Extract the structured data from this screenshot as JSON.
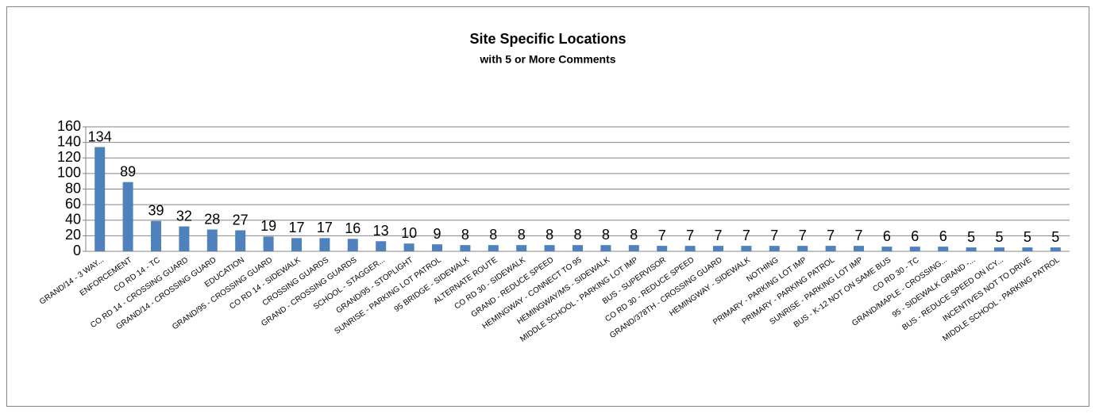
{
  "chart_data": {
    "type": "bar",
    "title": "Site Specific Locations",
    "subtitle": "with 5 or More Comments",
    "categories": [
      "GRAND/14 - 3 WAY...",
      "ENFORCEMENT",
      "CO RD 14 - TC",
      "CO RD 14 - CROSSING GUARD",
      "GRAND/14 - CROSSING GUARD",
      "EDUCATION",
      "GRAND/95 - CROSSING GUARD",
      "CO RD 14 - SIDEWALK",
      "CROSSING GUARDS",
      "GRAND - CROSSING GUARDS",
      "SCHOOL - STAGGER...",
      "GRAND/95 - STOPLIGHT",
      "SUNRISE - PARKING LOT PATROL",
      "95 BRIDGE - SIDEWALK",
      "ALTERNATE ROUTE",
      "CO RD 30 - SIDEWALK",
      "GRAND - REDUCE SPEED",
      "HEMINGWAY - CONNECT TO 95",
      "HEMINGWAY/MS - SIDEWALK",
      "MIDDLE SCHOOL - PARKING LOT IMP",
      "BUS - SUPERVISOR",
      "CO RD 30 - REDUCE SPEED",
      "GRAND/378TH - CROSSING GUARD",
      "HEMINGWAY - SIDEWALK",
      "NOTHING",
      "PRIMARY - PARKING LOT IMP",
      "PRIMARY - PARKING PATROL",
      "SUNRISE - PARKING LOT IMP",
      "BUS - K-12 NOT ON SAME BUS",
      "CO RD 30 - TC",
      "GRAND/MAPLE - CROSSING...",
      "95 - SIDEWALK GRAND -...",
      "BUS - REDUCE SPEED ON ICY...",
      "INCENTIVES NOT TO DRIVE",
      "MIDDLE SCHOOL - PARKING PATROL"
    ],
    "values": [
      134,
      89,
      39,
      32,
      28,
      27,
      19,
      17,
      17,
      16,
      13,
      10,
      9,
      8,
      8,
      8,
      8,
      8,
      8,
      8,
      7,
      7,
      7,
      7,
      7,
      7,
      7,
      7,
      6,
      6,
      6,
      5,
      5,
      5,
      5
    ],
    "color": "#4f81bd",
    "ylim": [
      0,
      160
    ],
    "yticks": [
      0,
      20,
      40,
      60,
      80,
      100,
      120,
      140,
      160
    ],
    "grid": true
  }
}
